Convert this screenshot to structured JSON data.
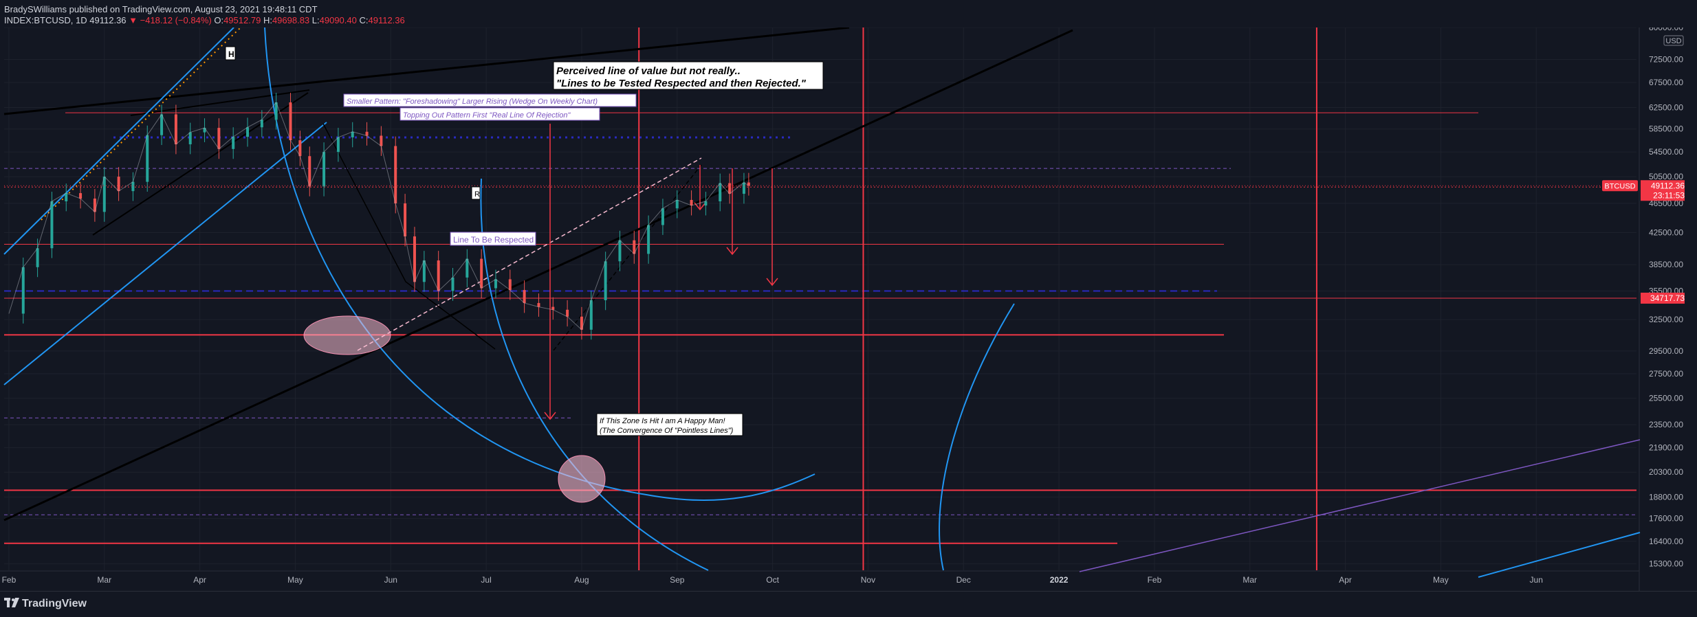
{
  "header": {
    "author": "BradySWilliams",
    "published_text": "published on TradingView.com, August 23, 2021 19:48:11 CDT",
    "symbol": "INDEX:BTCUSD, 1D",
    "last": "49112.36",
    "change": "▼ −418.12 (−0.84%)",
    "o_label": "O:",
    "o_value": "49512.79",
    "h_label": "H:",
    "h_value": "49698.83",
    "l_label": "L:",
    "l_value": "49090.40",
    "c_label": "C:",
    "c_value": "49112.36"
  },
  "footer": {
    "logo_text": "TradingView"
  },
  "colors": {
    "background": "#131722",
    "grid": "#1e222d",
    "axis_text": "#b2b5be",
    "red": "#f23645",
    "blue": "#2196f3",
    "black": "#000000",
    "purple": "#7e57c2",
    "pink": "#f8bbd0",
    "candle_up": "#26a69a",
    "candle_down": "#ef5350"
  },
  "chart_data": {
    "type": "line",
    "title": "INDEX:BTCUSD, 1D",
    "currency": "USD",
    "scale": "log",
    "ylim": [
      15000,
      80000
    ],
    "x_ticks": [
      "Feb",
      "Mar",
      "Apr",
      "May",
      "Jun",
      "Jul",
      "Aug",
      "Sep",
      "Oct",
      "Nov",
      "Dec",
      "2022",
      "Feb",
      "Mar",
      "Apr",
      "May",
      "Jun"
    ],
    "x_tick_months": [
      1,
      2,
      3,
      4,
      5,
      6,
      7,
      8,
      9,
      10,
      11,
      12,
      13,
      14,
      15,
      16,
      17
    ],
    "x_range_months": [
      0.95,
      18.05
    ],
    "y_ticks": [
      80000,
      72500,
      67500,
      62500,
      58500,
      54500,
      50500,
      46500,
      42500,
      38500,
      35500,
      32500,
      29500,
      27500,
      25500,
      23500,
      21900,
      20300,
      18800,
      17600,
      16400,
      15300
    ],
    "y_tick_labels": [
      "80000.00",
      "72500.00",
      "67500.00",
      "62500.00",
      "58500.00",
      "54500.00",
      "50500.00",
      "46500.00",
      "42500.00",
      "38500.00",
      "35500.00",
      "32500.00",
      "29500.00",
      "27500.00",
      "25500.00",
      "23500.00",
      "21900.00",
      "20300.00",
      "18800.00",
      "17600.00",
      "16400.00",
      "15300.00"
    ],
    "price_series": {
      "name": "BTCUSD",
      "months": [
        1.0,
        1.15,
        1.3,
        1.45,
        1.6,
        1.75,
        1.9,
        2.0,
        2.15,
        2.3,
        2.45,
        2.6,
        2.75,
        2.9,
        3.05,
        3.2,
        3.35,
        3.5,
        3.65,
        3.8,
        3.95,
        4.05,
        4.15,
        4.3,
        4.45,
        4.6,
        4.75,
        4.9,
        5.05,
        5.15,
        5.25,
        5.35,
        5.5,
        5.65,
        5.8,
        5.95,
        6.1,
        6.25,
        6.4,
        6.55,
        6.7,
        6.85,
        7.0,
        7.1,
        7.25,
        7.4,
        7.55,
        7.7,
        7.85,
        8.0,
        8.15,
        8.3,
        8.45,
        8.55,
        8.7,
        8.75
      ],
      "close": [
        33100,
        38200,
        40500,
        46800,
        48000,
        47200,
        45300,
        50500,
        48300,
        49700,
        57400,
        61200,
        55800,
        57900,
        58700,
        55000,
        57100,
        58800,
        60200,
        63500,
        56500,
        53800,
        49000,
        54500,
        57000,
        58000,
        57300,
        55500,
        46500,
        42000,
        36500,
        39000,
        35500,
        37000,
        39200,
        35800,
        36800,
        35600,
        34200,
        33800,
        33500,
        32800,
        31500,
        34500,
        38900,
        41500,
        39800,
        43500,
        45800,
        47000,
        46200,
        46800,
        49500,
        47900,
        49600,
        49112
      ]
    },
    "last_price": 49112.36,
    "last_price_label": "BTCUSD",
    "countdown": "23:11:53",
    "marked_price": 34717.73,
    "marked_price_label": "34717.73",
    "annotations": [
      {
        "id": "perceived",
        "lines": [
          "Perceived line of value but not really..",
          "\"Lines to be Tested Respected and then Rejected.\""
        ]
      },
      {
        "id": "smaller-pattern",
        "text": "Smaller Pattern: \"Foreshadowing\" Larger Rising (Wedge On Weekly Chart)"
      },
      {
        "id": "topping-out",
        "text": "Topping Out Pattern First \"Real Line Of Rejection\""
      },
      {
        "id": "line-respected",
        "text": "Line To Be Respected"
      },
      {
        "id": "happy-zone",
        "lines": [
          "If This Zone Is Hit I am A Happy Man!",
          "(The Convergence Of \"Pointless Lines\")"
        ]
      },
      {
        "id": "marker-h",
        "text": "H"
      },
      {
        "id": "marker-r",
        "text": "R"
      }
    ],
    "horizontal_levels": [
      {
        "price": 61500,
        "style": "solid-thin",
        "color": "red"
      },
      {
        "price": 57000,
        "style": "dotted",
        "color": "navy"
      },
      {
        "price": 51800,
        "style": "dashed-thin",
        "color": "purple"
      },
      {
        "price": 48900,
        "style": "dotted-thin",
        "color": "red"
      },
      {
        "price": 41000,
        "style": "solid-thin",
        "color": "red"
      },
      {
        "price": 35500,
        "style": "dashed",
        "color": "navy"
      },
      {
        "price": 34717.73,
        "style": "solid-thin",
        "color": "red"
      },
      {
        "price": 31000,
        "style": "solid",
        "color": "red"
      },
      {
        "price": 24000,
        "style": "dashed-thin",
        "color": "purple"
      },
      {
        "price": 19200,
        "style": "solid",
        "color": "red"
      },
      {
        "price": 17800,
        "style": "dashed-thin",
        "color": "purple"
      },
      {
        "price": 16300,
        "style": "solid",
        "color": "red"
      }
    ],
    "vertical_levels": [
      {
        "month": 7.6,
        "color": "red"
      },
      {
        "month": 9.95,
        "color": "red"
      },
      {
        "month": 14.7,
        "color": "red"
      }
    ]
  }
}
